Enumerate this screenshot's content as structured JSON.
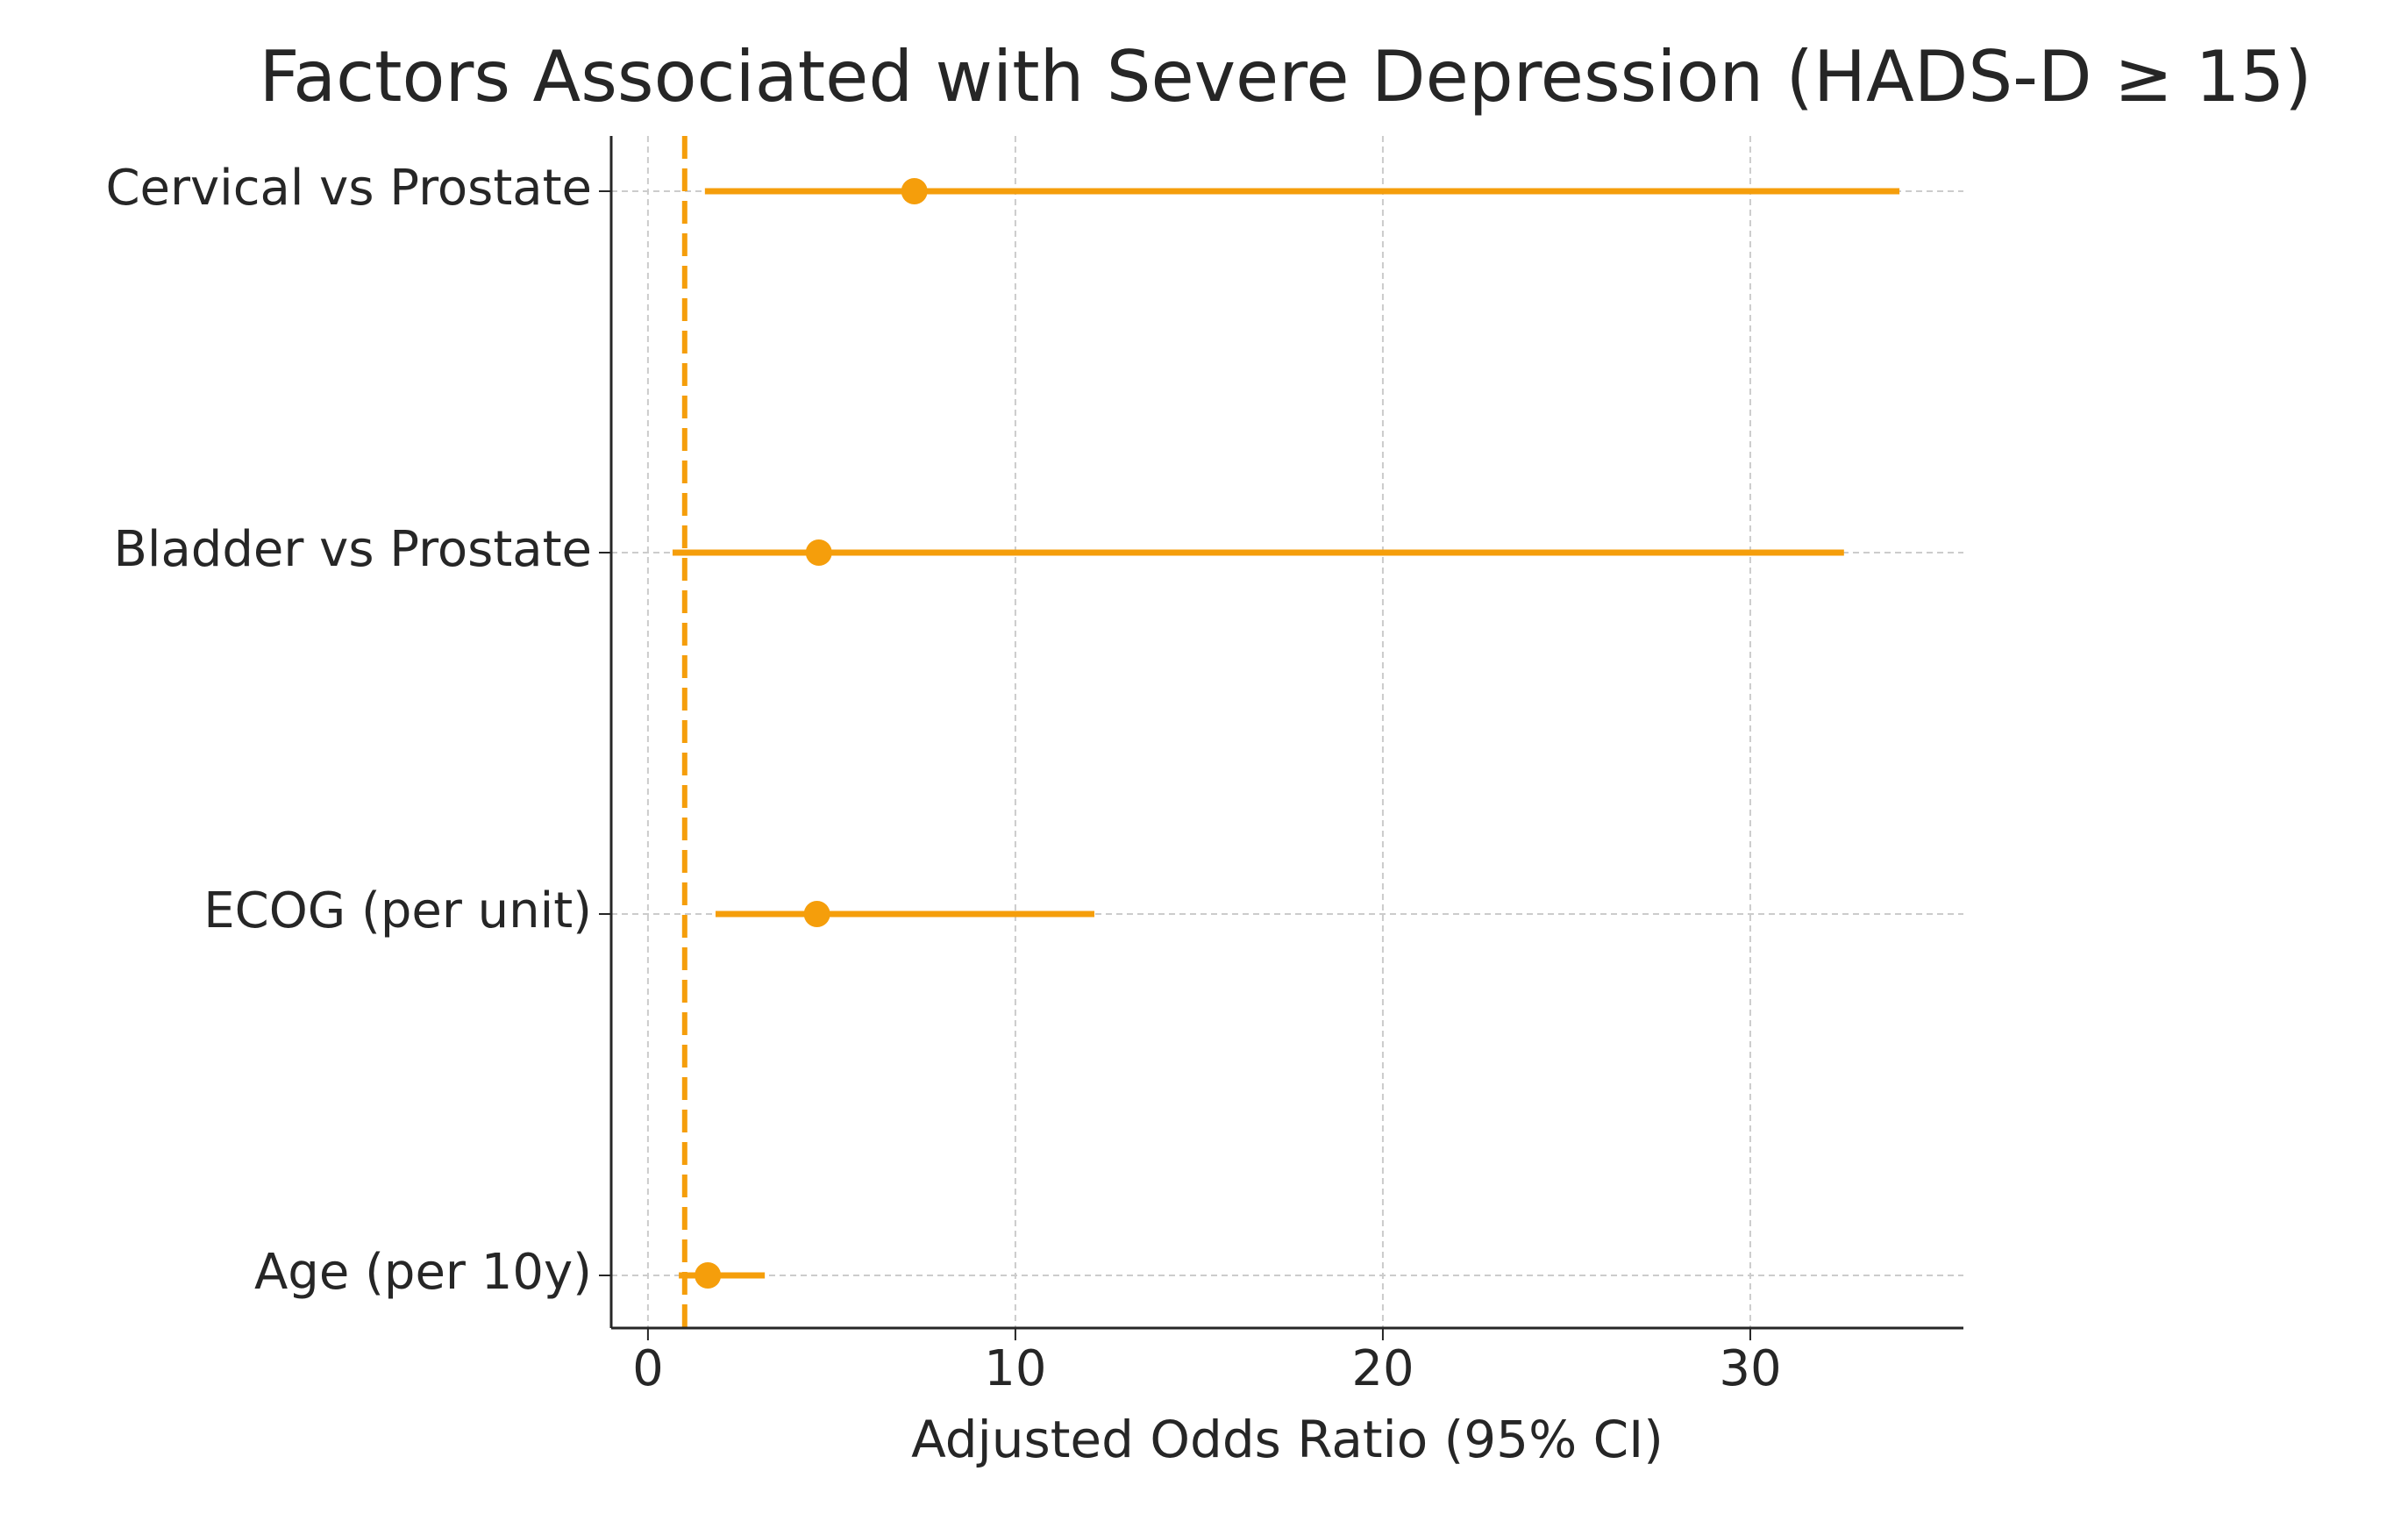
{
  "chart_data": {
    "type": "forest",
    "title": "Factors Associated with Severe Depression (HADS-D ≥ 15)",
    "x_label": "Adjusted Odds Ratio (95% CI)",
    "categories": [
      "Cervical vs Prostate",
      "Bladder vs Prostate",
      "ECOG (per unit)",
      "Age (per 10y)"
    ],
    "values": [
      7.25,
      4.65,
      4.6,
      1.63
    ],
    "lower": [
      1.55,
      0.67,
      1.84,
      0.84
    ],
    "upper": [
      34.06,
      32.55,
      12.15,
      3.18
    ],
    "reference_line": 1,
    "color": "#f59e0b",
    "xlim": [
      -1.0,
      35.8
    ],
    "xticks": [
      0,
      10,
      20,
      30
    ],
    "grid": true
  }
}
